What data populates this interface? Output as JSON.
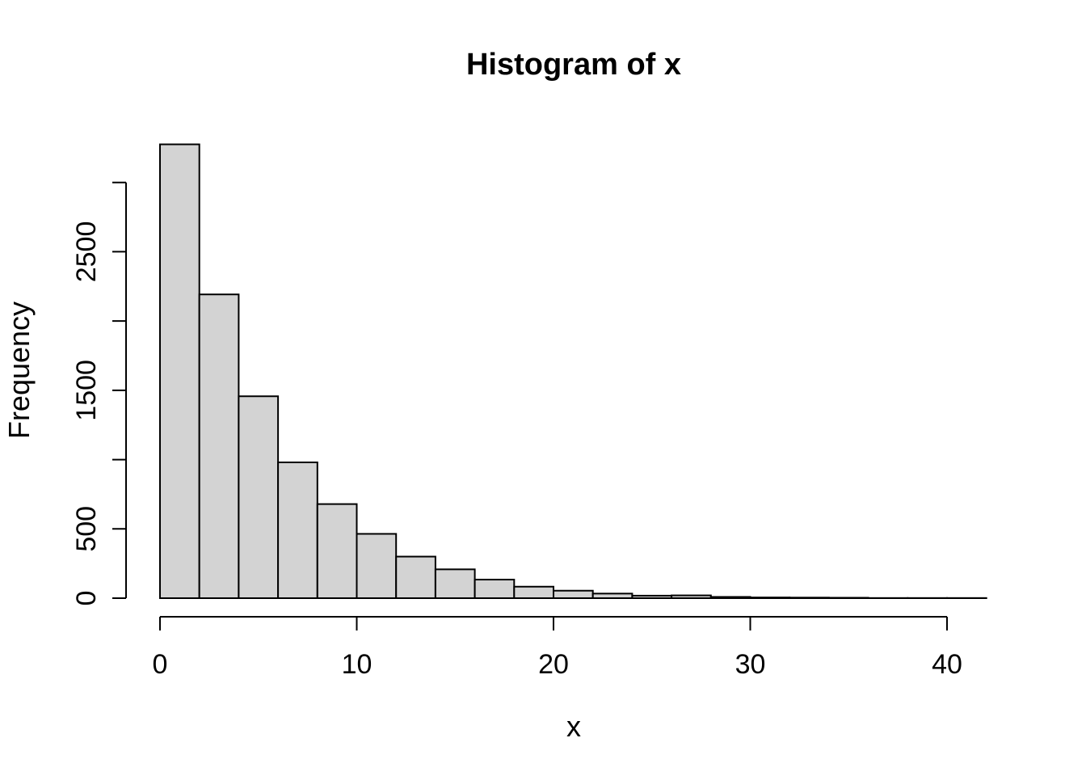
{
  "figure": {
    "background": "#ffffff"
  },
  "chart_data": {
    "type": "bar",
    "variant": "histogram",
    "title": "Histogram of x",
    "xlabel": "x",
    "ylabel": "Frequency",
    "bin_width": 2,
    "bin_edges": [
      0,
      2,
      4,
      6,
      8,
      10,
      12,
      14,
      16,
      18,
      20,
      22,
      24,
      26,
      28,
      30,
      32,
      34,
      36,
      38,
      40,
      42
    ],
    "counts": [
      3275,
      2192,
      1457,
      980,
      679,
      464,
      300,
      208,
      134,
      83,
      54,
      33,
      18,
      20,
      9,
      5,
      4,
      3,
      1,
      1,
      1
    ],
    "xlim": [
      0,
      42
    ],
    "ylim": [
      0,
      3000
    ],
    "x_ticks": [
      0,
      10,
      20,
      30,
      40
    ],
    "x_tick_labels": [
      "0",
      "10",
      "20",
      "30",
      "40"
    ],
    "y_ticks": [
      0,
      500,
      1000,
      1500,
      2000,
      2500,
      3000
    ],
    "y_tick_labels": [
      "0",
      "500",
      "",
      "1500",
      "",
      "2500",
      ""
    ],
    "grid": false,
    "bar_fill": "#d3d3d3",
    "bar_stroke": "#000000",
    "axis_color": "#000000",
    "text_color": "#000000"
  }
}
